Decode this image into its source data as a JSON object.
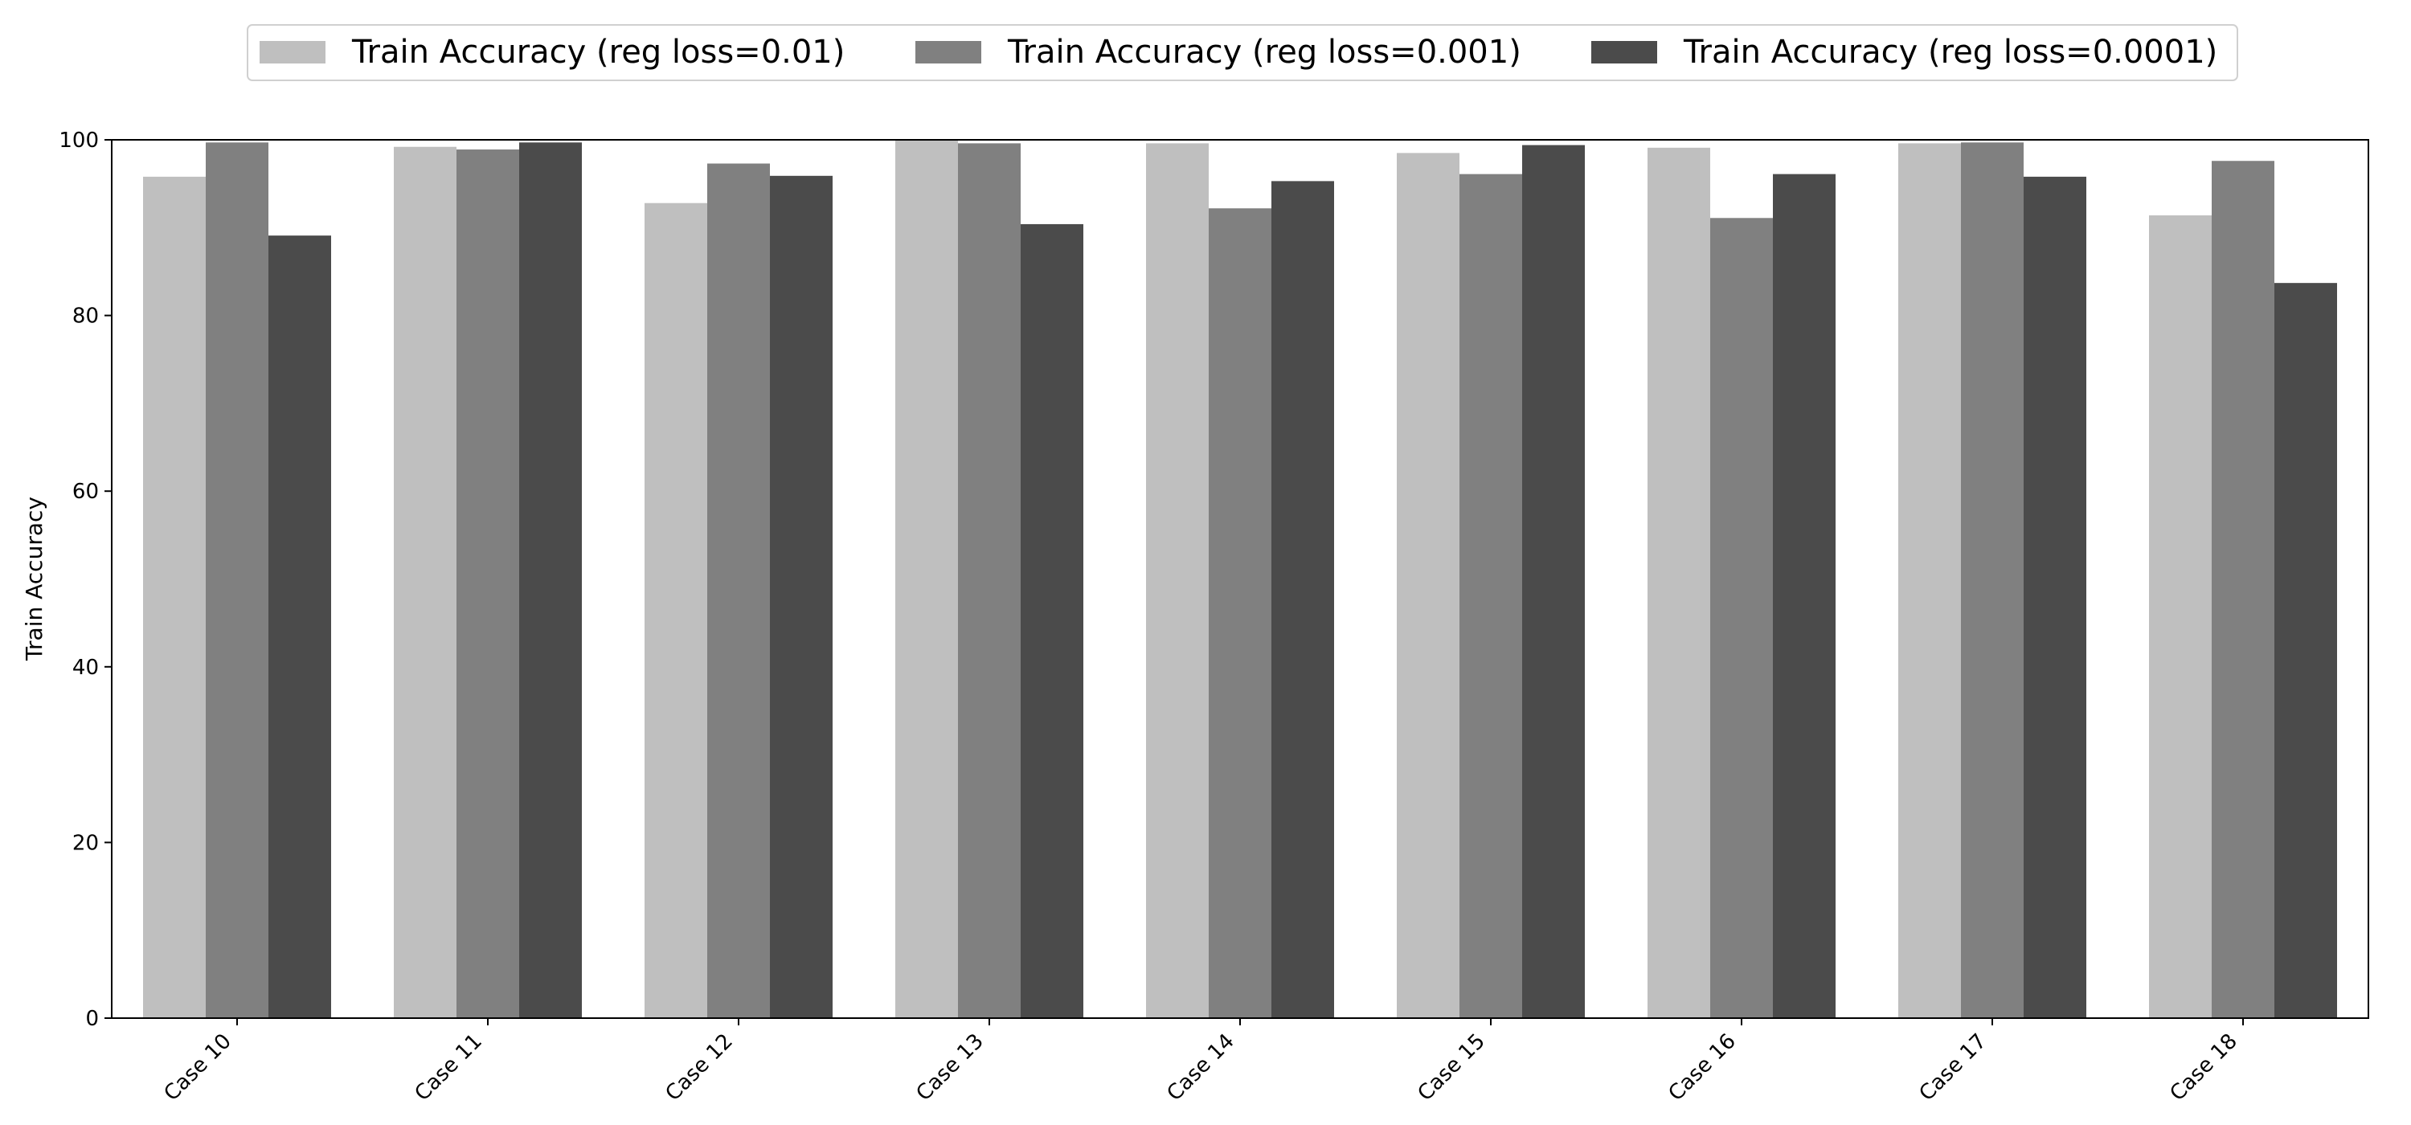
{
  "chart_data": {
    "type": "bar",
    "title": "",
    "xlabel": "",
    "ylabel": "Train Accuracy",
    "ylim": [
      0,
      100
    ],
    "yticks": [
      "0",
      "20",
      "40",
      "60",
      "80",
      "100"
    ],
    "categories": [
      "Case 10",
      "Case 11",
      "Case 12",
      "Case 13",
      "Case 14",
      "Case 15",
      "Case 16",
      "Case 17",
      "Case 18"
    ],
    "series": [
      {
        "name": "Train Accuracy (reg loss=0.01)",
        "color": "#bfbfbf",
        "values": [
          95.8,
          99.2,
          92.8,
          100.0,
          99.6,
          98.5,
          99.1,
          99.6,
          91.4
        ]
      },
      {
        "name": "Train Accuracy (reg loss=0.001)",
        "color": "#808080",
        "values": [
          99.7,
          98.9,
          97.3,
          99.6,
          92.2,
          96.1,
          91.1,
          99.7,
          97.6
        ]
      },
      {
        "name": "Train Accuracy (reg loss=0.0001)",
        "color": "#4b4b4b",
        "values": [
          89.1,
          99.7,
          95.9,
          90.4,
          95.3,
          99.4,
          96.1,
          95.8,
          83.7
        ]
      }
    ],
    "grid": false,
    "legend_position": "top-center"
  }
}
